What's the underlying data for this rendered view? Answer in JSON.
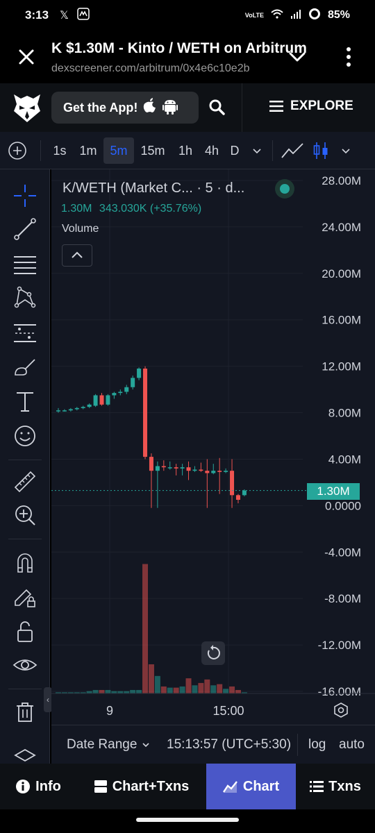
{
  "status_bar": {
    "time": "3:13",
    "network": "VoLTE",
    "battery": "85%",
    "icons": [
      "x-icon",
      "app-icon",
      "wifi-icon",
      "signal-icon",
      "battery-ring-icon"
    ]
  },
  "browser": {
    "title": "K $1.30M - Kinto / WETH on Arbitrum",
    "url": "dexscreener.com/arbitrum/0x4e6c10e2b"
  },
  "site_nav": {
    "get_app_label": "Get the App!",
    "explore_label": "EXPLORE"
  },
  "chart_toolbar": {
    "timeframes": [
      "1s",
      "1m",
      "5m",
      "15m",
      "1h",
      "4h",
      "D"
    ],
    "active_timeframe": "5m"
  },
  "legend": {
    "title": "K/WETH (Market C... · 5 · d...",
    "value": "1.30M",
    "change": "343.030K (+35.76%)",
    "volume_label": "Volume"
  },
  "price_axis": {
    "ticks": [
      "28.00M",
      "24.00M",
      "20.00M",
      "16.00M",
      "12.00M",
      "8.00M",
      "4.00M",
      "0.0000",
      "-4.00M",
      "-8.00M",
      "-12.00M",
      "-16.00M"
    ],
    "current_price_label": "1.30M"
  },
  "time_axis": {
    "ticks": [
      "9",
      "15:00"
    ]
  },
  "chart_data": {
    "type": "candlestick",
    "ylim": [
      -16000000,
      28000000
    ],
    "candles": [
      {
        "o": 8.2,
        "h": 8.4,
        "l": 8.0,
        "c": 8.2,
        "v": 0.1
      },
      {
        "o": 8.2,
        "h": 8.3,
        "l": 8.1,
        "c": 8.2,
        "v": 0.1
      },
      {
        "o": 8.2,
        "h": 8.4,
        "l": 8.1,
        "c": 8.3,
        "v": 0.1
      },
      {
        "o": 8.3,
        "h": 8.5,
        "l": 8.2,
        "c": 8.4,
        "v": 0.1
      },
      {
        "o": 8.4,
        "h": 8.6,
        "l": 8.3,
        "c": 8.5,
        "v": 0.1
      },
      {
        "o": 8.5,
        "h": 8.8,
        "l": 8.4,
        "c": 8.7,
        "v": 0.2
      },
      {
        "o": 8.6,
        "h": 9.6,
        "l": 8.5,
        "c": 9.5,
        "v": 0.3
      },
      {
        "o": 9.5,
        "h": 9.7,
        "l": 8.6,
        "c": 8.7,
        "v": 0.3
      },
      {
        "o": 8.7,
        "h": 9.6,
        "l": 8.6,
        "c": 9.5,
        "v": 0.3
      },
      {
        "o": 9.5,
        "h": 9.8,
        "l": 9.2,
        "c": 9.7,
        "v": 0.2
      },
      {
        "o": 9.7,
        "h": 10.0,
        "l": 9.5,
        "c": 9.8,
        "v": 0.2
      },
      {
        "o": 9.8,
        "h": 10.4,
        "l": 9.6,
        "c": 10.2,
        "v": 0.2
      },
      {
        "o": 10.2,
        "h": 11.2,
        "l": 10.0,
        "c": 11.0,
        "v": 0.3
      },
      {
        "o": 11.0,
        "h": 11.9,
        "l": 10.8,
        "c": 11.8,
        "v": 0.3
      },
      {
        "o": 11.8,
        "h": 12.0,
        "l": 4.0,
        "c": 4.2,
        "v": 11.1
      },
      {
        "o": 4.2,
        "h": 4.5,
        "l": -0.2,
        "c": 3.0,
        "v": 2.5
      },
      {
        "o": 3.0,
        "h": 3.8,
        "l": -0.2,
        "c": 3.4,
        "v": 1.5
      },
      {
        "o": 3.4,
        "h": 3.9,
        "l": 3.0,
        "c": 3.3,
        "v": 0.6
      },
      {
        "o": 3.3,
        "h": 3.8,
        "l": 3.1,
        "c": 3.3,
        "v": 0.5
      },
      {
        "o": 3.3,
        "h": 3.6,
        "l": 2.6,
        "c": 3.2,
        "v": 0.5
      },
      {
        "o": 3.2,
        "h": 3.6,
        "l": 2.6,
        "c": 3.3,
        "v": 0.6
      },
      {
        "o": 3.3,
        "h": 3.8,
        "l": 2.2,
        "c": 3.0,
        "v": 1.3
      },
      {
        "o": 3.0,
        "h": 3.4,
        "l": 2.9,
        "c": 3.1,
        "v": 0.7
      },
      {
        "o": 3.1,
        "h": 3.7,
        "l": 2.9,
        "c": 3.0,
        "v": 0.9
      },
      {
        "o": 3.0,
        "h": 4.0,
        "l": -0.2,
        "c": 2.8,
        "v": 1.2
      },
      {
        "o": 2.8,
        "h": 3.6,
        "l": 2.7,
        "c": 3.0,
        "v": 0.7
      },
      {
        "o": 3.0,
        "h": 4.1,
        "l": 1.0,
        "c": 2.9,
        "v": 0.8
      },
      {
        "o": 2.9,
        "h": 3.2,
        "l": 2.8,
        "c": 3.0,
        "v": 0.4
      },
      {
        "o": 3.0,
        "h": 4.0,
        "l": -0.2,
        "c": 0.9,
        "v": 0.6
      },
      {
        "o": 0.9,
        "h": 1.0,
        "l": 0.2,
        "c": 0.5,
        "v": 0.3
      },
      {
        "o": 0.9,
        "h": 1.4,
        "l": 0.8,
        "c": 1.3,
        "v": 0.1
      }
    ],
    "price_line": 1.3
  },
  "range_bar": {
    "date_range_label": "Date Range",
    "timestamp": "15:13:57 (UTC+5:30)",
    "log_label": "log",
    "auto_label": "auto"
  },
  "bottom_nav": {
    "items": [
      {
        "label": "Info",
        "icon": "info-icon"
      },
      {
        "label": "Chart+Txns",
        "icon": "split-view-icon"
      },
      {
        "label": "Chart",
        "icon": "chart-icon"
      },
      {
        "label": "Txns",
        "icon": "list-icon"
      }
    ],
    "active": "Chart"
  },
  "colors": {
    "up": "#26a69a",
    "down": "#ef5350",
    "accent": "#2962ff",
    "nav_active": "#4a57c8"
  }
}
